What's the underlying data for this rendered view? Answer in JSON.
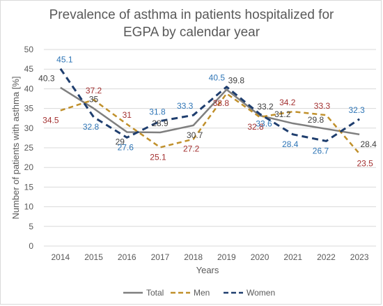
{
  "chart_data": {
    "type": "line",
    "title_line1": "Prevalence of asthma in patients hospitalized for",
    "title_line2": "EGPA by calendar year",
    "xlabel": "Years",
    "ylabel": "Number of patients with asthma [%]",
    "x": [
      "2014",
      "2015",
      "2016",
      "2017",
      "2018",
      "2019",
      "2020",
      "2021",
      "2022",
      "2023"
    ],
    "ylim": [
      0,
      50
    ],
    "yticks": [
      "0",
      "5",
      "10",
      "15",
      "20",
      "25",
      "30",
      "35",
      "40",
      "45",
      "50"
    ],
    "grid": true,
    "legend_position": "bottom",
    "series": [
      {
        "name": "Total",
        "values": [
          40.3,
          35,
          29,
          28.9,
          30.7,
          39.8,
          33.2,
          31.2,
          29.8,
          28.4
        ],
        "labels": [
          "40.3",
          "35",
          "29",
          "28.9",
          "30.7",
          "39.8",
          "33.2",
          "31.2",
          "29.8",
          "28.4"
        ],
        "color": "#7f7f7f",
        "label_color": "#404040",
        "dash": "solid"
      },
      {
        "name": "Men",
        "values": [
          34.5,
          37.2,
          31,
          25.1,
          27.2,
          38.8,
          32.8,
          34.2,
          33.3,
          23.5
        ],
        "labels": [
          "34.5",
          "37.2",
          "31",
          "25.1",
          "27.2",
          "38.8",
          "32.8",
          "34.2",
          "33.3",
          "23.5"
        ],
        "color": "#c0902b",
        "label_color": "#a33030",
        "dash": "dashed"
      },
      {
        "name": "Women",
        "values": [
          45.1,
          32.8,
          27.6,
          31.8,
          33.3,
          40.5,
          33.6,
          28.4,
          26.7,
          32.3
        ],
        "labels": [
          "45.1",
          "32.8",
          "27.6",
          "31.8",
          "33.3",
          "40.5",
          "33.6",
          "28.4",
          "26.7",
          "32.3"
        ],
        "color": "#1f3e6e",
        "label_color": "#2e75b6",
        "dash": "dashed"
      }
    ]
  }
}
